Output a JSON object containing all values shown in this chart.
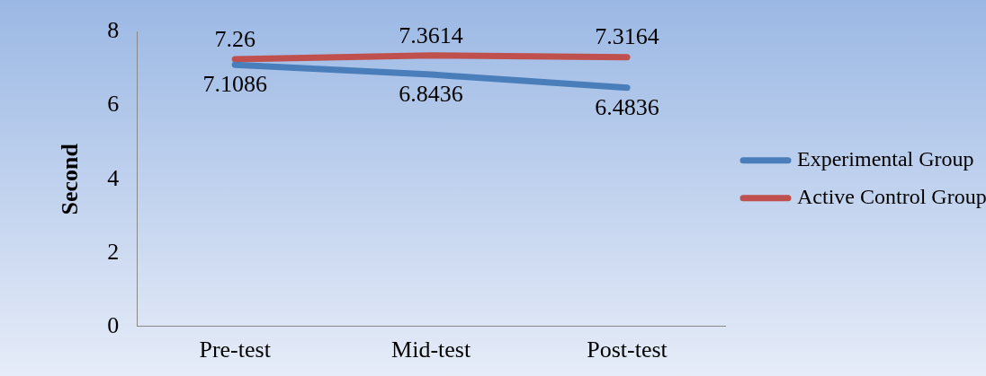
{
  "chart_data": {
    "type": "line",
    "ylabel": "Second",
    "categories": [
      "Pre-test",
      "Mid-test",
      "Post-test"
    ],
    "series": [
      {
        "name": "Experimental Group",
        "color": "#4a7ebb",
        "values": [
          7.1086,
          6.8436,
          6.4836
        ]
      },
      {
        "name": "Active Control Group",
        "color": "#c0504d",
        "values": [
          7.26,
          7.3614,
          7.3164
        ]
      }
    ],
    "ylim": [
      0,
      8
    ],
    "yticks": [
      0,
      2,
      4,
      6,
      8
    ],
    "grid": false,
    "legend": "right",
    "marker": "none",
    "data_labels": true
  }
}
